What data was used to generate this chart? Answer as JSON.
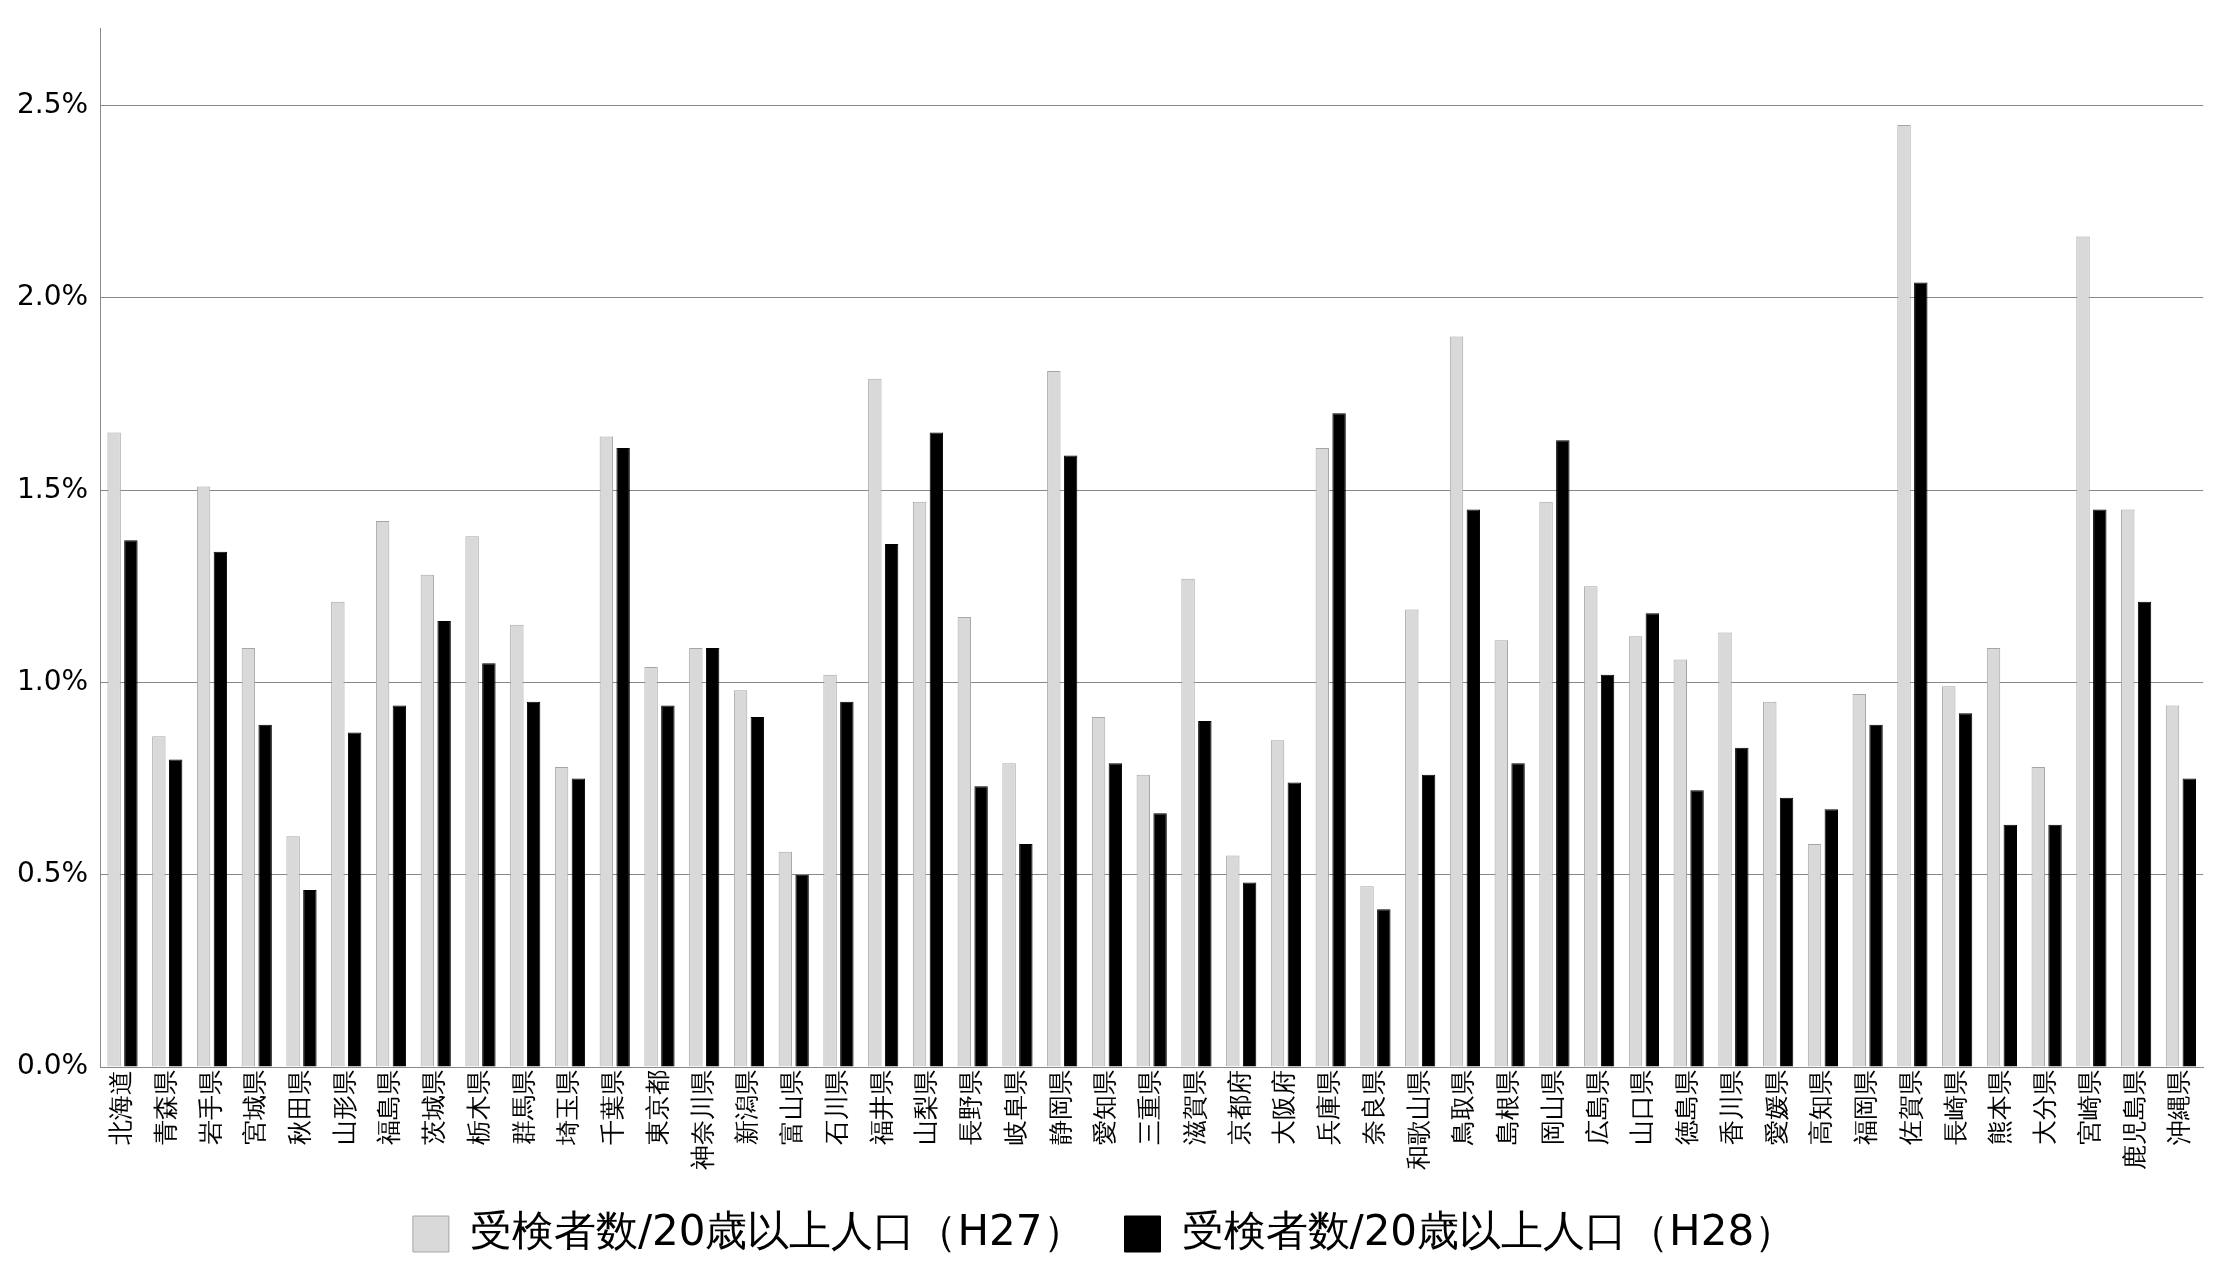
{
  "chart_data": {
    "type": "bar",
    "categories": [
      "北海道",
      "青森県",
      "岩手県",
      "宮城県",
      "秋田県",
      "山形県",
      "福島県",
      "茨城県",
      "栃木県",
      "群馬県",
      "埼玉県",
      "千葉県",
      "東京都",
      "神奈川県",
      "新潟県",
      "富山県",
      "石川県",
      "福井県",
      "山梨県",
      "長野県",
      "岐阜県",
      "静岡県",
      "愛知県",
      "三重県",
      "滋賀県",
      "京都府",
      "大阪府",
      "兵庫県",
      "奈良県",
      "和歌山県",
      "鳥取県",
      "島根県",
      "岡山県",
      "広島県",
      "山口県",
      "徳島県",
      "香川県",
      "愛媛県",
      "高知県",
      "福岡県",
      "佐賀県",
      "長崎県",
      "熊本県",
      "大分県",
      "宮崎県",
      "鹿児島県",
      "沖縄県"
    ],
    "series": [
      {
        "name": "受検者数/20歳以上人口（H27）",
        "color": "#d9d9d9",
        "values": [
          1.65,
          0.86,
          1.51,
          1.09,
          0.6,
          1.21,
          1.42,
          1.28,
          1.38,
          1.15,
          0.78,
          1.64,
          1.04,
          1.09,
          0.98,
          0.56,
          1.02,
          1.79,
          1.47,
          1.17,
          0.79,
          1.81,
          0.91,
          0.76,
          1.27,
          0.55,
          0.85,
          1.61,
          0.47,
          1.19,
          1.9,
          1.11,
          1.47,
          1.25,
          1.12,
          1.06,
          1.13,
          0.95,
          0.58,
          0.97,
          2.45,
          0.99,
          1.09,
          0.78,
          2.16,
          1.45,
          0.94
        ]
      },
      {
        "name": "受検者数/20歳以上人口（H28）",
        "color": "#000000",
        "values": [
          1.37,
          0.8,
          1.34,
          0.89,
          0.46,
          0.87,
          0.94,
          1.16,
          1.05,
          0.95,
          0.75,
          1.61,
          0.94,
          1.09,
          0.91,
          0.5,
          0.95,
          1.36,
          1.65,
          0.73,
          0.58,
          1.59,
          0.79,
          0.66,
          0.9,
          0.48,
          0.74,
          1.7,
          0.41,
          0.76,
          1.45,
          0.79,
          1.63,
          1.02,
          1.18,
          0.72,
          0.83,
          0.7,
          0.67,
          0.89,
          2.04,
          0.92,
          0.63,
          0.63,
          1.45,
          1.21,
          0.75
        ]
      }
    ],
    "ylim": [
      0,
      2.7
    ],
    "yticks": [
      {
        "value": 0,
        "label": "0.0%"
      },
      {
        "value": 0.5,
        "label": "0.5%"
      },
      {
        "value": 1,
        "label": "1.0%"
      },
      {
        "value": 1.5,
        "label": "1.5%"
      },
      {
        "value": 2,
        "label": "2.0%"
      },
      {
        "value": 2.5,
        "label": "2.5%"
      }
    ],
    "grid": "y",
    "legend": "bottom"
  }
}
